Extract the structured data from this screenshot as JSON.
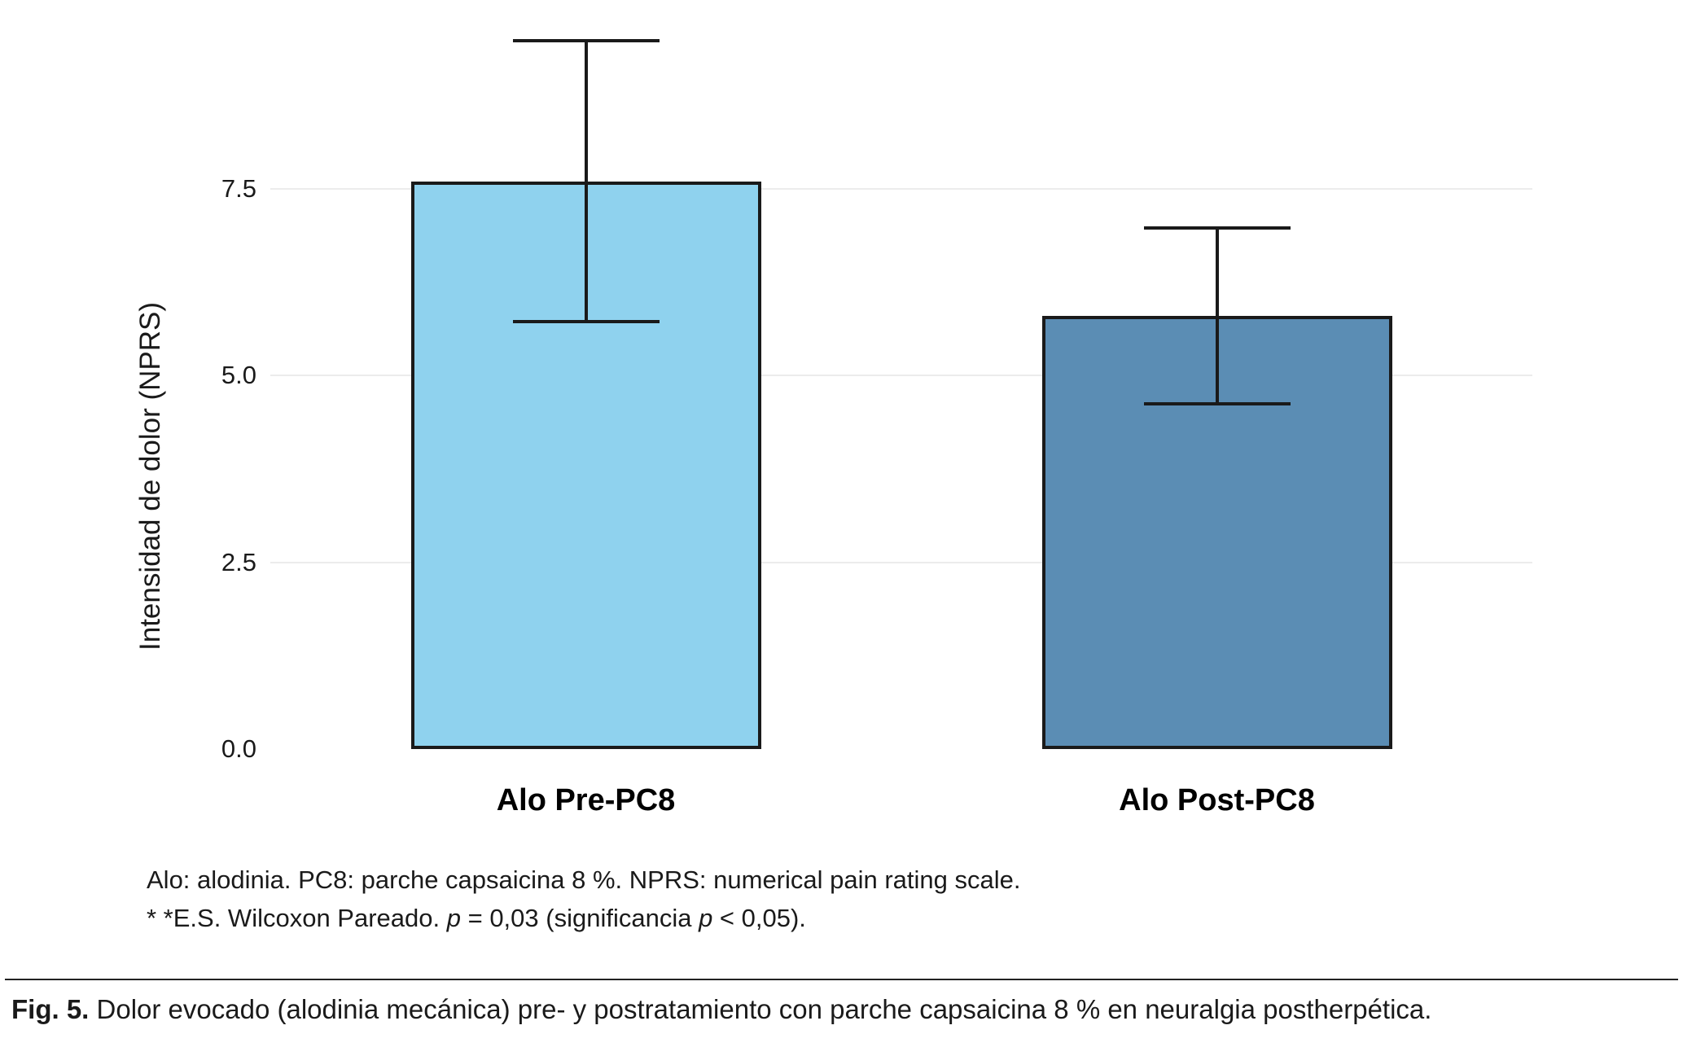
{
  "chart_data": {
    "type": "bar",
    "categories": [
      "Alo Pre-PC8",
      "Alo Post-PC8"
    ],
    "values": [
      7.6,
      5.8
    ],
    "error_upper": [
      9.5,
      7.0
    ],
    "error_lower": [
      5.7,
      4.6
    ],
    "title": "",
    "xlabel": "",
    "ylabel": "Intensidad de dolor (NPRS)",
    "ylim": [
      0,
      9.85
    ],
    "yticks": [
      {
        "value": 0,
        "label": "0.0"
      },
      {
        "value": 2.5,
        "label": "2.5"
      },
      {
        "value": 5,
        "label": "5.0"
      },
      {
        "value": 7.5,
        "label": "7.5"
      }
    ],
    "gridline_values": [
      2.5,
      5,
      7.5
    ],
    "grid": "horizontal-major-only",
    "legend_position": "none",
    "bar_colors": [
      "#8FD2EE",
      "#5B8DB4"
    ],
    "bar_border_color": "#1a1a1a",
    "error_bar_color": "#1a1a1a"
  },
  "footnote": {
    "line1": "Alo: alodinia. PC8: parche capsaicina 8 %. NPRS: numerical pain rating scale.",
    "line2_segments": [
      {
        "text": "* *E.S. Wilcoxon Pareado. "
      },
      {
        "text": "p"
      },
      {
        "text": " = 0,03 (significancia "
      },
      {
        "text": "p"
      },
      {
        "text": " < 0,05)."
      }
    ]
  },
  "caption": {
    "label": "Fig. 5.",
    "text": " Dolor evocado (alodinia mecánica)  pre- y postratamiento con parche capsaicina 8 % en neuralgia postherpética."
  }
}
